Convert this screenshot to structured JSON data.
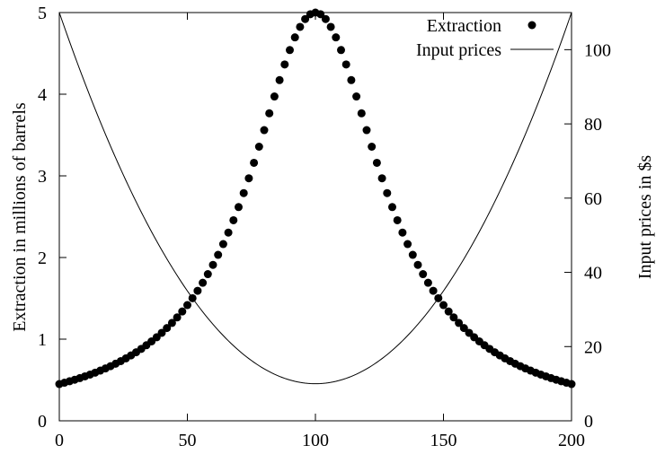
{
  "chart_data": {
    "type": "line",
    "title": "",
    "xlabel": "",
    "ylabel": "Extraction in millions of barrels",
    "y2label": "Input prices in $s",
    "xlim": [
      0,
      200
    ],
    "ylim": [
      0,
      5
    ],
    "y2lim": [
      0,
      110
    ],
    "xticks": [
      "0",
      "50",
      "100",
      "150",
      "200"
    ],
    "yticks": [
      "0",
      "1",
      "2",
      "3",
      "4",
      "5"
    ],
    "y2ticks": [
      "0",
      "20",
      "40",
      "60",
      "80",
      "100"
    ],
    "grid": false,
    "legend_position": "top-right",
    "series": [
      {
        "name": "Extraction",
        "style": "points",
        "axis": "left",
        "marker_color": "#000000",
        "x_start": 0,
        "x_end": 200,
        "x_step": 2,
        "peak_x": 100,
        "peak_value": 5.0,
        "end_value": 0.45
      },
      {
        "name": "Input prices",
        "style": "line",
        "axis": "right",
        "line_color": "#000000",
        "x_start": 0,
        "x_end": 200,
        "vertex_x": 100,
        "min_value": 10,
        "end_value": 110
      }
    ]
  }
}
